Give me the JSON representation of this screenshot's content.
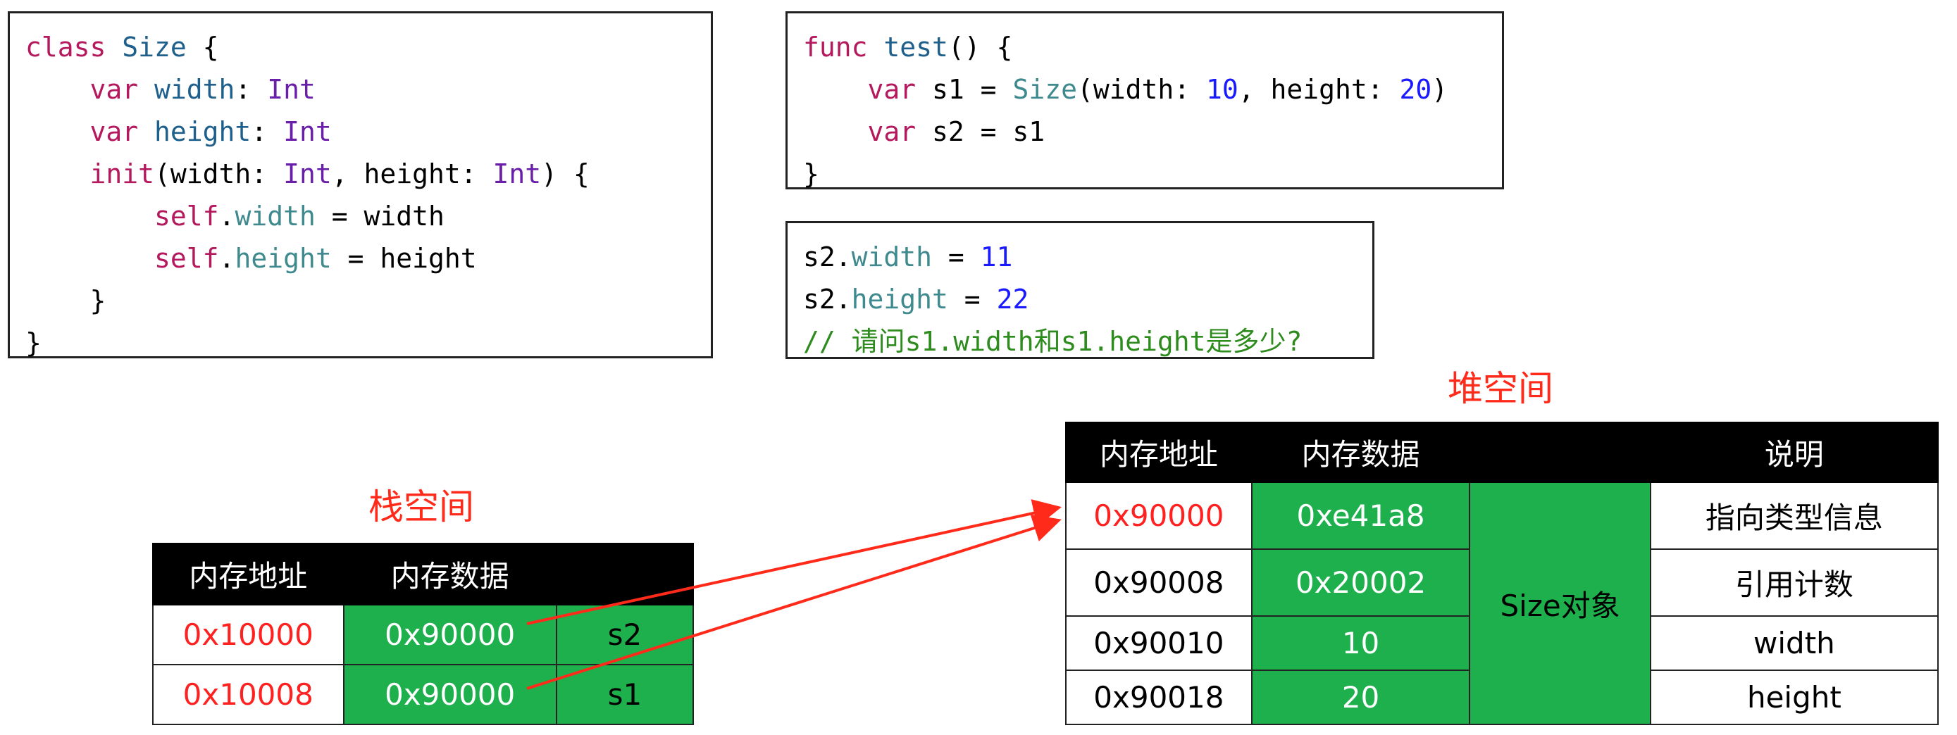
{
  "code_class": [
    [
      [
        "class",
        "k"
      ],
      [
        " ",
        "x"
      ],
      [
        "Size",
        "t"
      ],
      [
        " {",
        "x"
      ]
    ],
    [
      [
        "    ",
        "x"
      ],
      [
        "var",
        "k"
      ],
      [
        " ",
        "x"
      ],
      [
        "width",
        "t"
      ],
      [
        ": ",
        "x"
      ],
      [
        "Int",
        "ty"
      ]
    ],
    [
      [
        "    ",
        "x"
      ],
      [
        "var",
        "k"
      ],
      [
        " ",
        "x"
      ],
      [
        "height",
        "t"
      ],
      [
        ": ",
        "x"
      ],
      [
        "Int",
        "ty"
      ]
    ],
    [
      [
        "    ",
        "x"
      ],
      [
        "init",
        "k"
      ],
      [
        "(width: ",
        "x"
      ],
      [
        "Int",
        "ty"
      ],
      [
        ", height: ",
        "x"
      ],
      [
        "Int",
        "ty"
      ],
      [
        ") {",
        "x"
      ]
    ],
    [
      [
        "        ",
        "x"
      ],
      [
        "self",
        "k"
      ],
      [
        ".",
        "x"
      ],
      [
        "width",
        "p"
      ],
      [
        " = width",
        "x"
      ]
    ],
    [
      [
        "        ",
        "x"
      ],
      [
        "self",
        "k"
      ],
      [
        ".",
        "x"
      ],
      [
        "height",
        "p"
      ],
      [
        " = height",
        "x"
      ]
    ],
    [
      [
        "    }",
        "x"
      ]
    ],
    [
      [
        "}",
        "x"
      ]
    ]
  ],
  "code_test": [
    [
      [
        "func",
        "k"
      ],
      [
        " ",
        "x"
      ],
      [
        "test",
        "t"
      ],
      [
        "() {",
        "x"
      ]
    ],
    [
      [
        "    ",
        "x"
      ],
      [
        "var",
        "k"
      ],
      [
        " s1 = ",
        "x"
      ],
      [
        "Size",
        "p"
      ],
      [
        "(width: ",
        "x"
      ],
      [
        "10",
        "n"
      ],
      [
        ", height: ",
        "x"
      ],
      [
        "20",
        "n"
      ],
      [
        ")",
        "x"
      ]
    ],
    [
      [
        "    ",
        "x"
      ],
      [
        "var",
        "k"
      ],
      [
        " s2 = s1",
        "x"
      ]
    ],
    [
      [
        "}",
        "x"
      ]
    ]
  ],
  "code_question": [
    [
      [
        "s2.",
        "x"
      ],
      [
        "width",
        "p"
      ],
      [
        " = ",
        "x"
      ],
      [
        "11",
        "n"
      ]
    ],
    [
      [
        "s2.",
        "x"
      ],
      [
        "height",
        "p"
      ],
      [
        " = ",
        "x"
      ],
      [
        "22",
        "n"
      ]
    ],
    [
      [
        "// 请问s1.width和s1.height是多少?",
        "c"
      ]
    ]
  ],
  "heap": {
    "label": "堆空间",
    "headers": [
      "内存地址",
      "内存数据",
      "",
      "说明"
    ],
    "object_label": "Size对象",
    "rows": [
      {
        "addr": "0x90000",
        "data": "0xe41a8",
        "desc": "指向类型信息"
      },
      {
        "addr": "0x90008",
        "data": "0x20002",
        "desc": "引用计数"
      },
      {
        "addr": "0x90010",
        "data": "10",
        "desc": "width"
      },
      {
        "addr": "0x90018",
        "data": "20",
        "desc": "height"
      }
    ]
  },
  "stack": {
    "label": "栈空间",
    "headers": [
      "内存地址",
      "内存数据",
      ""
    ],
    "rows": [
      {
        "addr": "0x10000",
        "data": "0x90000",
        "var": "s2"
      },
      {
        "addr": "0x10008",
        "data": "0x90000",
        "var": "s1"
      }
    ]
  },
  "colors": {
    "green": "#1db04d",
    "red": "#ff2020",
    "arrow": "#ff2a1a"
  }
}
